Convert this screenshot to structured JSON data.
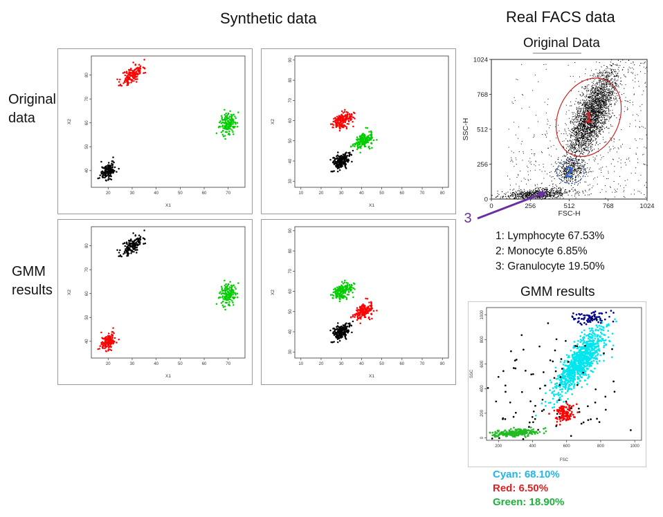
{
  "headings": {
    "synthetic": "Synthetic data",
    "real": "Real FACS data"
  },
  "row_labels": {
    "original": [
      "Original",
      "data"
    ],
    "gmm": [
      "GMM",
      "results"
    ]
  },
  "facs_legend": [
    "1: Lymphocyte 67.53%",
    "2: Monocyte 6.85%",
    "3: Granulocyte 19.50%"
  ],
  "gmm_percentages": [
    {
      "text": "Cyan: 68.10%",
      "color": "#22b5e8"
    },
    {
      "text": "Red: 6.50%",
      "color": "#e02020"
    },
    {
      "text": "Green: 18.90%",
      "color": "#1db23b"
    }
  ],
  "chart_data": [
    {
      "type": "scatter",
      "xlabel": "X1",
      "ylabel": "X2",
      "xlim": [
        13,
        77
      ],
      "ylim": [
        33,
        88
      ],
      "xticks": [
        20,
        30,
        40,
        50,
        60,
        70
      ],
      "yticks": [
        40,
        50,
        60,
        70,
        80
      ],
      "clusters": [
        {
          "color": "#ff0000",
          "center": [
            30,
            80
          ],
          "sd": [
            2.2,
            2.2
          ],
          "rho": 0.55,
          "n": 150
        },
        {
          "color": "#00cc00",
          "center": [
            70,
            60
          ],
          "sd": [
            1.8,
            2.2
          ],
          "rho": 0.1,
          "n": 150
        },
        {
          "color": "#000000",
          "center": [
            20,
            40
          ],
          "sd": [
            1.6,
            1.9
          ],
          "rho": 0.4,
          "n": 150
        }
      ]
    },
    {
      "type": "scatter",
      "xlabel": "X1",
      "ylabel": "X2",
      "xlim": [
        7,
        83
      ],
      "ylim": [
        27,
        92
      ],
      "xticks": [
        10,
        20,
        30,
        40,
        50,
        60,
        70,
        80
      ],
      "yticks": [
        30,
        40,
        50,
        60,
        70,
        80,
        90
      ],
      "clusters": [
        {
          "color": "#ff0000",
          "center": [
            30,
            60
          ],
          "sd": [
            2.5,
            2.0
          ],
          "rho": 0.4,
          "n": 180
        },
        {
          "color": "#00cc00",
          "center": [
            41,
            50
          ],
          "sd": [
            2.3,
            1.9
          ],
          "rho": 0.3,
          "n": 180
        },
        {
          "color": "#000000",
          "center": [
            30,
            40
          ],
          "sd": [
            2.3,
            2.2
          ],
          "rho": 0.4,
          "n": 180
        }
      ]
    },
    {
      "type": "scatter",
      "xlabel": "X1",
      "ylabel": "X2",
      "xlim": [
        13,
        77
      ],
      "ylim": [
        33,
        88
      ],
      "xticks": [
        20,
        30,
        40,
        50,
        60,
        70
      ],
      "yticks": [
        40,
        50,
        60,
        70,
        80
      ],
      "clusters": [
        {
          "color": "#000000",
          "center": [
            30,
            80
          ],
          "sd": [
            2.2,
            2.2
          ],
          "rho": 0.55,
          "n": 150
        },
        {
          "color": "#00cc00",
          "center": [
            70,
            60
          ],
          "sd": [
            1.8,
            2.2
          ],
          "rho": 0.1,
          "n": 150
        },
        {
          "color": "#ff0000",
          "center": [
            20,
            40
          ],
          "sd": [
            1.6,
            1.9
          ],
          "rho": 0.4,
          "n": 150
        }
      ]
    },
    {
      "type": "scatter",
      "xlabel": "X1",
      "ylabel": "X2",
      "xlim": [
        7,
        83
      ],
      "ylim": [
        27,
        92
      ],
      "xticks": [
        10,
        20,
        30,
        40,
        50,
        60,
        70,
        80
      ],
      "yticks": [
        30,
        40,
        50,
        60,
        70,
        80,
        90
      ],
      "clusters": [
        {
          "color": "#00cc00",
          "center": [
            30,
            60
          ],
          "sd": [
            2.5,
            2.0
          ],
          "rho": 0.4,
          "n": 180
        },
        {
          "color": "#ff0000",
          "center": [
            41,
            50
          ],
          "sd": [
            2.3,
            1.9
          ],
          "rho": 0.3,
          "n": 180
        },
        {
          "color": "#000000",
          "center": [
            30,
            40
          ],
          "sd": [
            2.3,
            2.2
          ],
          "rho": 0.4,
          "n": 180
        }
      ]
    },
    {
      "type": "scatter",
      "title": "Original Data",
      "xlabel": "FSC-H",
      "ylabel": "SSC-H",
      "xlim": [
        0,
        1024
      ],
      "ylim": [
        0,
        1024
      ],
      "xticks": [
        0,
        256,
        512,
        768,
        1024
      ],
      "yticks": [
        0,
        256,
        512,
        768,
        1024
      ],
      "gates": [
        {
          "label": "1",
          "center": [
            640,
            600
          ],
          "rx": 200,
          "ry": 300,
          "rotation_deg": 25,
          "color": "#cc2222"
        },
        {
          "label": "2",
          "center": [
            520,
            200
          ],
          "rx": 90,
          "ry": 85,
          "rotation_deg": 0,
          "color": "#3355cc"
        }
      ],
      "annotation": "3"
    },
    {
      "type": "scatter",
      "xlabel": "FSC",
      "ylabel": "SSC",
      "xlim": [
        130,
        1040
      ],
      "ylim": [
        -20,
        1060
      ],
      "xticks": [
        200,
        400,
        600,
        800,
        1000
      ],
      "yticks": [
        0,
        200,
        400,
        600,
        800,
        1000
      ],
      "clusters": [
        {
          "color": "#00e5ee",
          "center": [
            680,
            620
          ],
          "sd": [
            70,
            130
          ],
          "rho": 0.8,
          "n": 900
        },
        {
          "color": "#00008b",
          "center": [
            730,
            980
          ],
          "sd": [
            60,
            30
          ],
          "rho": 0.1,
          "n": 80
        },
        {
          "color": "#ff0000",
          "center": [
            590,
            200
          ],
          "sd": [
            30,
            35
          ],
          "rho": 0.2,
          "n": 120
        },
        {
          "color": "#22bb22",
          "center": [
            300,
            40
          ],
          "sd": [
            70,
            15
          ],
          "rho": 0.4,
          "n": 250
        },
        {
          "color": "#000000",
          "center": [
            450,
            350
          ],
          "sd": [
            230,
            280
          ],
          "rho": 0.3,
          "n": 110
        }
      ]
    }
  ]
}
